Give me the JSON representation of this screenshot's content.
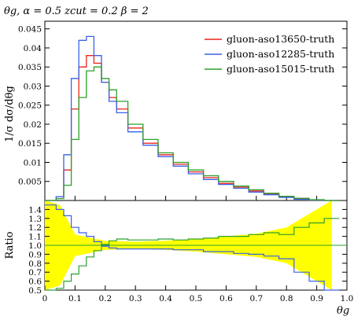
{
  "chart_data": {
    "type": "line",
    "title": "θg, α = 0.5 zcut = 0.2 β = 2",
    "xlabel": "θg",
    "ylabel": "1/σ dσ/dθg",
    "ratio_ylabel": "Ratio",
    "xlim": [
      0,
      1
    ],
    "ylim": [
      0,
      0.047
    ],
    "ratio_ylim": [
      0.5,
      1.5
    ],
    "xticks": [
      "0",
      "0.1",
      "0.2",
      "0.3",
      "0.4",
      "0.5",
      "0.6",
      "0.7",
      "0.8",
      "0.9",
      "1.0"
    ],
    "yticks": [
      "0.005",
      "0.01",
      "0.015",
      "0.02",
      "0.025",
      "0.03",
      "0.035",
      "0.04",
      "0.045"
    ],
    "ratio_yticks": [
      "0.5",
      "0.6",
      "0.7",
      "0.8",
      "0.9",
      "1.0",
      "1.1",
      "1.2",
      "1.3",
      "1.4"
    ],
    "legend_position": "top-right",
    "x": [
      0.025,
      0.05,
      0.075,
      0.1,
      0.125,
      0.15,
      0.175,
      0.2,
      0.225,
      0.25,
      0.3,
      0.35,
      0.4,
      0.45,
      0.5,
      0.55,
      0.6,
      0.65,
      0.7,
      0.75,
      0.8,
      0.85,
      0.9,
      0.95
    ],
    "series": [
      {
        "name": "gluon-aso13650-truth",
        "color": "#e8241c",
        "values": [
          0.0,
          0.001,
          0.008,
          0.024,
          0.035,
          0.038,
          0.036,
          0.031,
          0.027,
          0.024,
          0.019,
          0.015,
          0.012,
          0.0095,
          0.0075,
          0.006,
          0.0045,
          0.0035,
          0.0025,
          0.0017,
          0.001,
          0.0005,
          0.0001,
          0.0
        ]
      },
      {
        "name": "gluon-aso12285-truth",
        "color": "#3a62e6",
        "values": [
          0.0,
          0.001,
          0.012,
          0.032,
          0.042,
          0.043,
          0.038,
          0.031,
          0.026,
          0.023,
          0.018,
          0.0145,
          0.0115,
          0.009,
          0.007,
          0.0055,
          0.0042,
          0.0032,
          0.0022,
          0.0015,
          0.0008,
          0.0003,
          0.0001,
          0.0
        ]
      },
      {
        "name": "gluon-aso15015-truth",
        "color": "#2ca02c",
        "values": [
          0.0,
          0.0005,
          0.004,
          0.016,
          0.027,
          0.034,
          0.035,
          0.032,
          0.029,
          0.026,
          0.02,
          0.016,
          0.0125,
          0.01,
          0.008,
          0.0065,
          0.005,
          0.0038,
          0.0028,
          0.0019,
          0.0011,
          0.0006,
          0.0002,
          0.0
        ]
      }
    ],
    "ratio_series": [
      {
        "name": "gluon-aso12285-truth",
        "color": "#3a62e6",
        "values": [
          1.45,
          1.4,
          1.33,
          1.2,
          1.14,
          1.1,
          1.04,
          0.99,
          0.97,
          0.96,
          0.96,
          0.96,
          0.96,
          0.95,
          0.95,
          0.93,
          0.93,
          0.91,
          0.9,
          0.88,
          0.85,
          0.7,
          0.6,
          0.5
        ]
      },
      {
        "name": "gluon-aso15015-truth",
        "color": "#2ca02c",
        "values": [
          0.5,
          0.52,
          0.6,
          0.68,
          0.77,
          0.87,
          0.94,
          1.01,
          1.05,
          1.07,
          1.06,
          1.06,
          1.07,
          1.06,
          1.07,
          1.08,
          1.1,
          1.1,
          1.12,
          1.14,
          1.12,
          1.2,
          1.25,
          1.3
        ]
      }
    ],
    "ratio_band_color": "#ffff00"
  }
}
